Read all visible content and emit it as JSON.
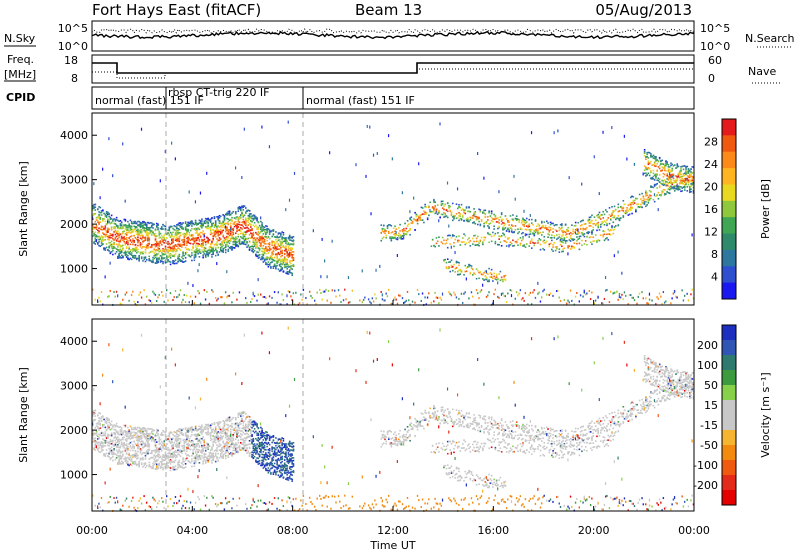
{
  "header": {
    "station": "Fort Hays East (fitACF)",
    "beam": "Beam 13",
    "date": "05/Aug/2013"
  },
  "noise_panel": {
    "left_label": "N.Sky",
    "right_label": "N.Search",
    "left_ticks": [
      "10^5",
      "10^0"
    ],
    "right_ticks": [
      "10^5",
      "10^0"
    ]
  },
  "freq_panel": {
    "left_label_1": "Freq.",
    "left_label_2": "[MHz]",
    "left_ticks": [
      "18",
      "8"
    ],
    "right_label": "Nave",
    "right_ticks": [
      "60",
      "0"
    ]
  },
  "cpid_panel": {
    "label": "CPID",
    "segments": [
      "normal (fast) 151 IF",
      "rbsp CT-trig 220 IF",
      "normal (fast) 151 IF"
    ]
  },
  "chart_data": [
    {
      "type": "heatmap",
      "name": "power",
      "ylabel": "Slant Range [km]",
      "xlabel": "Time UT",
      "ylim": [
        180,
        4500
      ],
      "y_ticks": [
        1000,
        2000,
        3000,
        4000
      ],
      "x_ticks": [
        "00:00",
        "04:00",
        "08:00",
        "12:00",
        "16:00",
        "20:00",
        "00:00"
      ],
      "colorbar_label": "Power [dB]",
      "colorbar_ticks": [
        "28",
        "24",
        "20",
        "16",
        "12",
        "8",
        "4"
      ],
      "colorbar_colors": [
        "#e41a1c",
        "#f05a10",
        "#fb8a1a",
        "#ffb422",
        "#e8d820",
        "#8fc83c",
        "#3fa654",
        "#2e8a6a",
        "#2e78a0",
        "#2d4fd0",
        "#1a18f0"
      ]
    },
    {
      "type": "heatmap",
      "name": "velocity",
      "ylabel": "Slant Range [km]",
      "xlabel": "Time UT",
      "ylim": [
        180,
        4500
      ],
      "y_ticks": [
        1000,
        2000,
        3000,
        4000
      ],
      "x_ticks": [
        "00:00",
        "04:00",
        "08:00",
        "12:00",
        "16:00",
        "20:00",
        "00:00"
      ],
      "colorbar_label": "Velocity [m s⁻¹]",
      "colorbar_ticks": [
        "200",
        "100",
        "50",
        "15",
        "-15",
        "-50",
        "-100",
        "-200"
      ],
      "colorbar_colors": [
        "#1c2fbf",
        "#2f55b5",
        "#2e7a6e",
        "#3e9a3e",
        "#86d04a",
        "#c8c8c8",
        "#c8c8c8",
        "#f6b530",
        "#f28a10",
        "#f05a10",
        "#e42a1a",
        "#e40000"
      ]
    }
  ],
  "time_axis_label": "Time UT"
}
